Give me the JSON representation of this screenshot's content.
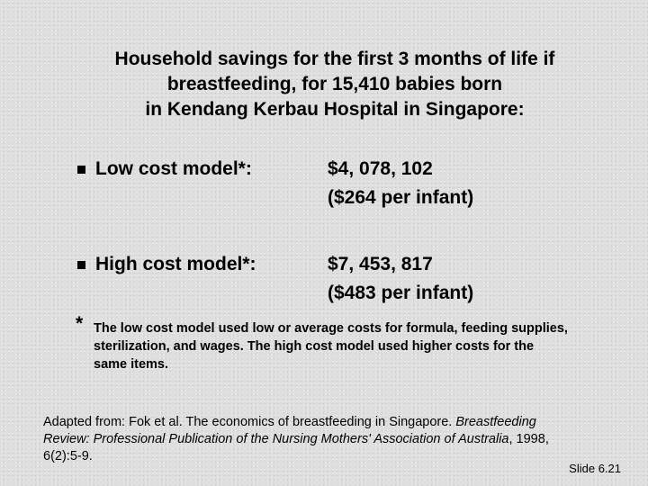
{
  "title": {
    "line1": "Household savings for the first 3 months of life if",
    "line2": "breastfeeding, for 15,410 babies born",
    "line3": "in Kendang Kerbau Hospital in Singapore:"
  },
  "rows": [
    {
      "label": "Low cost model*:",
      "value_line1": "$4, 078, 102",
      "value_line2": "($264 per infant)"
    },
    {
      "label": "High cost model*:",
      "value_line1": "$7, 453, 817",
      "value_line2": "($483 per infant)"
    }
  ],
  "footnote": {
    "marker": "*",
    "line1": "The low cost model used low or average costs for formula, feeding supplies,",
    "line2": "sterilization, and wages.  The high cost model used higher costs for the",
    "line3": "same items."
  },
  "source": {
    "line1_plain": "Adapted from: Fok et al. The economics of breastfeeding in Singapore. ",
    "line1_italic": "Breastfeeding",
    "line2_italic": "Review: Professional Publication of the Nursing Mothers' Association of Australia",
    "line2_plain": ", 1998,",
    "line3": "6(2):5-9."
  },
  "slide_number": "Slide 6.21"
}
